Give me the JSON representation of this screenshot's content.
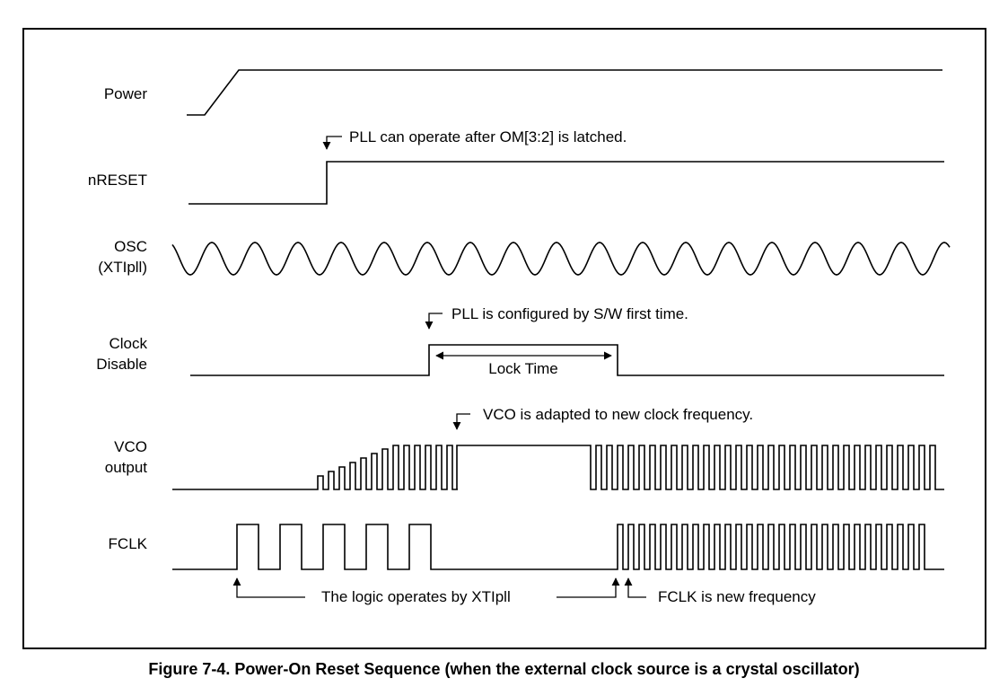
{
  "signals": {
    "power": "Power",
    "nreset": "nRESET",
    "osc_line1": "OSC",
    "osc_line2": "(XTIpll)",
    "clock_disable_line1": "Clock",
    "clock_disable_line2": "Disable",
    "vco_line1": "VCO",
    "vco_line2": "output",
    "fclk": "FCLK"
  },
  "annotations": {
    "pll_latch": "PLL can operate after OM[3:2] is latched.",
    "pll_config": "PLL is configured by S/W first time.",
    "lock_time": "Lock Time",
    "vco_adapted": "VCO is adapted to new clock frequency.",
    "logic_xtipll": "The logic operates by XTIpll",
    "fclk_new": "FCLK is new frequency"
  },
  "caption": "Figure 7-4. Power-On Reset Sequence (when the external clock source is a crystal oscillator)"
}
